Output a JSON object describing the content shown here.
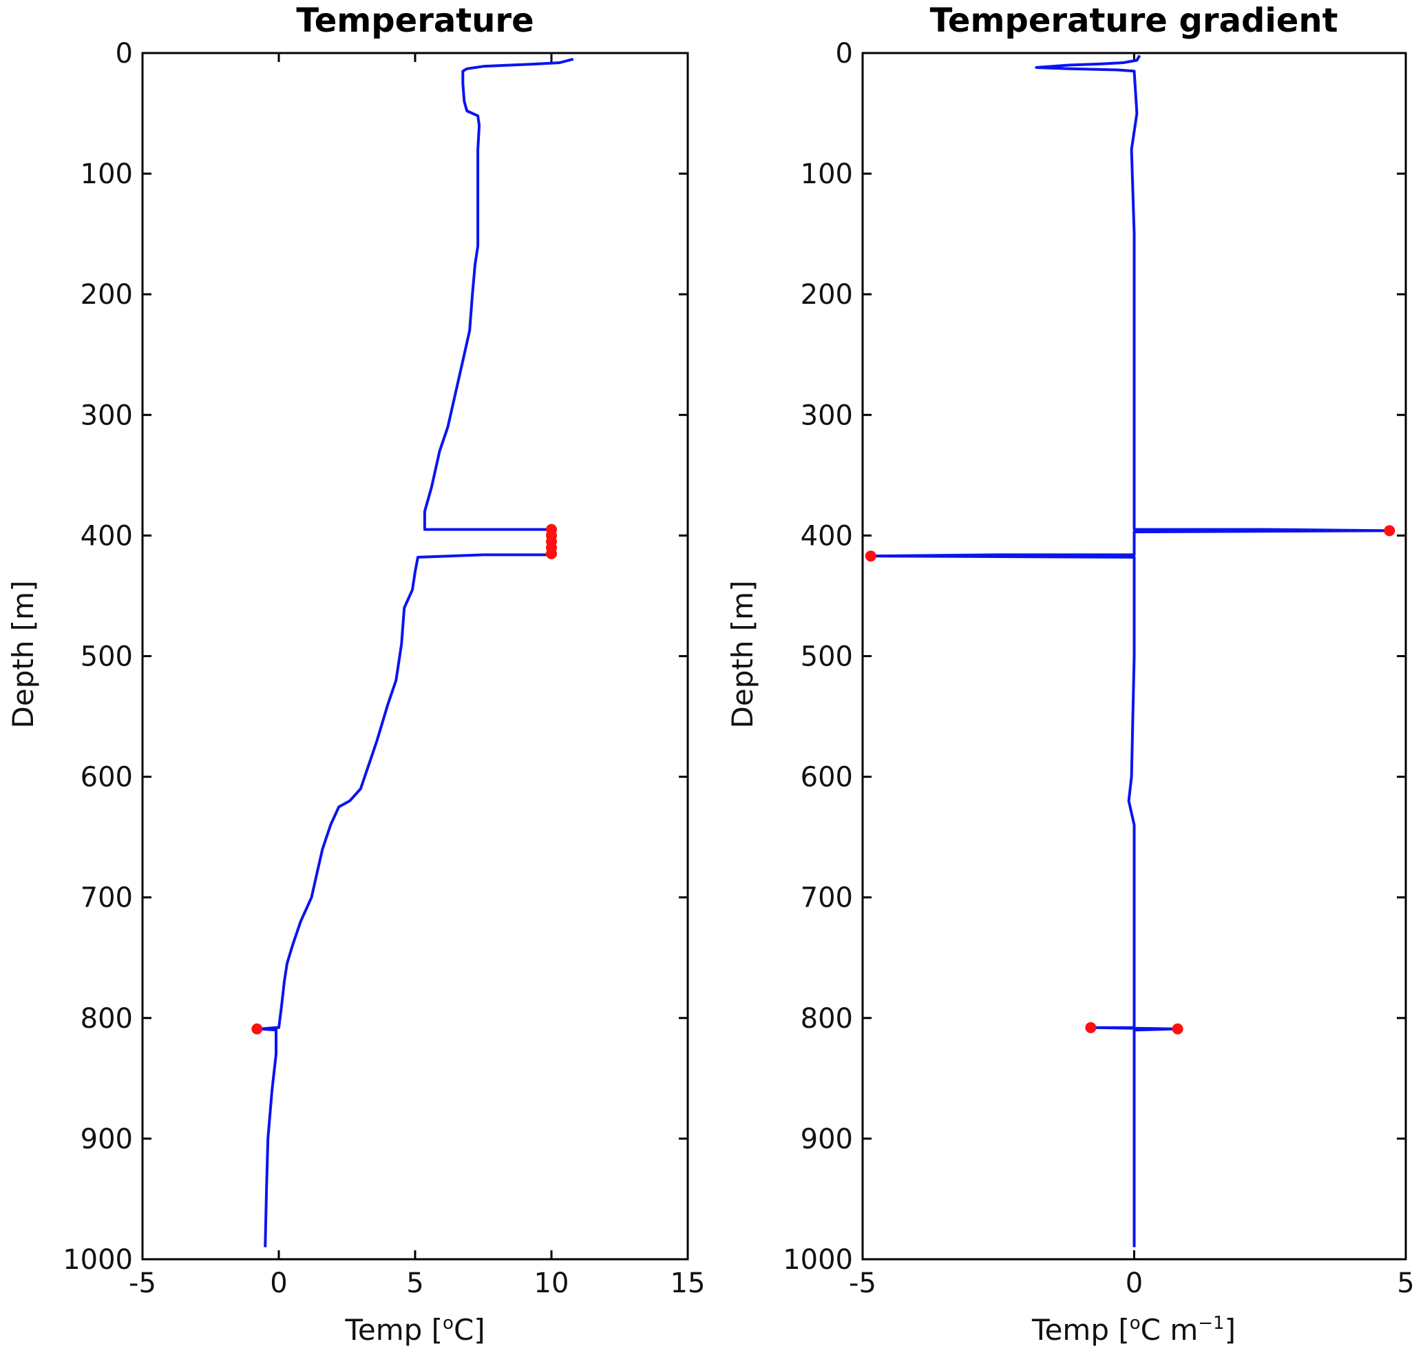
{
  "chart_data": [
    {
      "type": "line",
      "title": "Temperature",
      "xlabel": "Temp [",
      "xlabel_sup": "o",
      "xlabel_tail": "C]",
      "ylabel": "Depth [m]",
      "xlim": [
        -5,
        15
      ],
      "ylim": [
        0,
        1000
      ],
      "y_reversed": true,
      "xticks": [
        -5,
        0,
        5,
        10,
        15
      ],
      "yticks": [
        0,
        100,
        200,
        300,
        400,
        500,
        600,
        700,
        800,
        900,
        1000
      ],
      "grid": false,
      "legend": "none",
      "line_color": "#0a14f0",
      "flag_color": "#ff0f0f",
      "profile": [
        {
          "x": 10.8,
          "y": 5
        },
        {
          "x": 10.3,
          "y": 8
        },
        {
          "x": 9.5,
          "y": 9
        },
        {
          "x": 8.5,
          "y": 10
        },
        {
          "x": 7.5,
          "y": 11
        },
        {
          "x": 6.9,
          "y": 13
        },
        {
          "x": 6.75,
          "y": 15
        },
        {
          "x": 6.75,
          "y": 25
        },
        {
          "x": 6.8,
          "y": 40
        },
        {
          "x": 6.9,
          "y": 48
        },
        {
          "x": 7.3,
          "y": 52
        },
        {
          "x": 7.35,
          "y": 60
        },
        {
          "x": 7.3,
          "y": 80
        },
        {
          "x": 7.3,
          "y": 100
        },
        {
          "x": 7.3,
          "y": 130
        },
        {
          "x": 7.3,
          "y": 160
        },
        {
          "x": 7.2,
          "y": 175
        },
        {
          "x": 7.1,
          "y": 200
        },
        {
          "x": 7.0,
          "y": 230
        },
        {
          "x": 6.8,
          "y": 250
        },
        {
          "x": 6.5,
          "y": 280
        },
        {
          "x": 6.2,
          "y": 310
        },
        {
          "x": 5.9,
          "y": 330
        },
        {
          "x": 5.6,
          "y": 360
        },
        {
          "x": 5.35,
          "y": 380
        },
        {
          "x": 5.35,
          "y": 395
        },
        {
          "x": 10.0,
          "y": 395
        },
        {
          "x": 10.0,
          "y": 416
        },
        {
          "x": 7.5,
          "y": 416
        },
        {
          "x": 5.1,
          "y": 418
        },
        {
          "x": 5.0,
          "y": 430
        },
        {
          "x": 4.9,
          "y": 445
        },
        {
          "x": 4.6,
          "y": 460
        },
        {
          "x": 4.5,
          "y": 490
        },
        {
          "x": 4.3,
          "y": 520
        },
        {
          "x": 4.0,
          "y": 540
        },
        {
          "x": 3.6,
          "y": 570
        },
        {
          "x": 3.3,
          "y": 590
        },
        {
          "x": 3.0,
          "y": 610
        },
        {
          "x": 2.6,
          "y": 620
        },
        {
          "x": 2.2,
          "y": 625
        },
        {
          "x": 1.9,
          "y": 640
        },
        {
          "x": 1.6,
          "y": 660
        },
        {
          "x": 1.4,
          "y": 680
        },
        {
          "x": 1.2,
          "y": 700
        },
        {
          "x": 0.8,
          "y": 720
        },
        {
          "x": 0.5,
          "y": 740
        },
        {
          "x": 0.3,
          "y": 755
        },
        {
          "x": 0.2,
          "y": 770
        },
        {
          "x": 0.1,
          "y": 790
        },
        {
          "x": 0.0,
          "y": 808
        },
        {
          "x": -0.1,
          "y": 808
        },
        {
          "x": -0.7,
          "y": 809
        },
        {
          "x": -0.1,
          "y": 810
        },
        {
          "x": -0.1,
          "y": 830
        },
        {
          "x": -0.25,
          "y": 860
        },
        {
          "x": -0.4,
          "y": 900
        },
        {
          "x": -0.45,
          "y": 940
        },
        {
          "x": -0.5,
          "y": 990
        }
      ],
      "flagged": [
        {
          "x": 10.0,
          "y": 395
        },
        {
          "x": 10.0,
          "y": 400
        },
        {
          "x": 10.0,
          "y": 405
        },
        {
          "x": 10.0,
          "y": 410
        },
        {
          "x": 10.0,
          "y": 415
        },
        {
          "x": -0.8,
          "y": 809
        }
      ]
    },
    {
      "type": "line",
      "title": "Temperature gradient",
      "xlabel": "Temp [",
      "xlabel_sup": "o",
      "xlabel_tail": "C m",
      "xlabel_sup2": "−1",
      "xlabel_end": "]",
      "ylabel": "Depth [m]",
      "xlim": [
        -5,
        5
      ],
      "ylim": [
        0,
        1000
      ],
      "y_reversed": true,
      "xticks": [
        -5,
        0,
        5
      ],
      "yticks": [
        0,
        100,
        200,
        300,
        400,
        500,
        600,
        700,
        800,
        900,
        1000
      ],
      "grid": false,
      "legend": "none",
      "line_color": "#0a14f0",
      "flag_color": "#ff0f0f",
      "profile": [
        {
          "x": 0.1,
          "y": 2
        },
        {
          "x": 0.05,
          "y": 6
        },
        {
          "x": -0.2,
          "y": 8
        },
        {
          "x": -0.6,
          "y": 9
        },
        {
          "x": -1.2,
          "y": 10
        },
        {
          "x": -1.8,
          "y": 12
        },
        {
          "x": -1.2,
          "y": 13
        },
        {
          "x": -0.3,
          "y": 14
        },
        {
          "x": 0.0,
          "y": 15
        },
        {
          "x": 0.05,
          "y": 50
        },
        {
          "x": -0.05,
          "y": 80
        },
        {
          "x": 0.0,
          "y": 150
        },
        {
          "x": 0.0,
          "y": 300
        },
        {
          "x": 0.0,
          "y": 395
        },
        {
          "x": 2.4,
          "y": 395
        },
        {
          "x": 4.7,
          "y": 396
        },
        {
          "x": 0.0,
          "y": 397
        },
        {
          "x": 0.0,
          "y": 416
        },
        {
          "x": -2.5,
          "y": 416
        },
        {
          "x": -4.85,
          "y": 417
        },
        {
          "x": 0.0,
          "y": 418
        },
        {
          "x": 0.0,
          "y": 500
        },
        {
          "x": -0.05,
          "y": 600
        },
        {
          "x": -0.1,
          "y": 620
        },
        {
          "x": 0.0,
          "y": 640
        },
        {
          "x": 0.0,
          "y": 808
        },
        {
          "x": -0.75,
          "y": 808
        },
        {
          "x": 0.0,
          "y": 808.5
        },
        {
          "x": 0.75,
          "y": 809
        },
        {
          "x": 0.0,
          "y": 810
        },
        {
          "x": 0.0,
          "y": 990
        }
      ],
      "flagged": [
        {
          "x": 4.7,
          "y": 396
        },
        {
          "x": -4.85,
          "y": 417
        },
        {
          "x": -0.8,
          "y": 808
        },
        {
          "x": 0.8,
          "y": 809
        }
      ]
    }
  ]
}
